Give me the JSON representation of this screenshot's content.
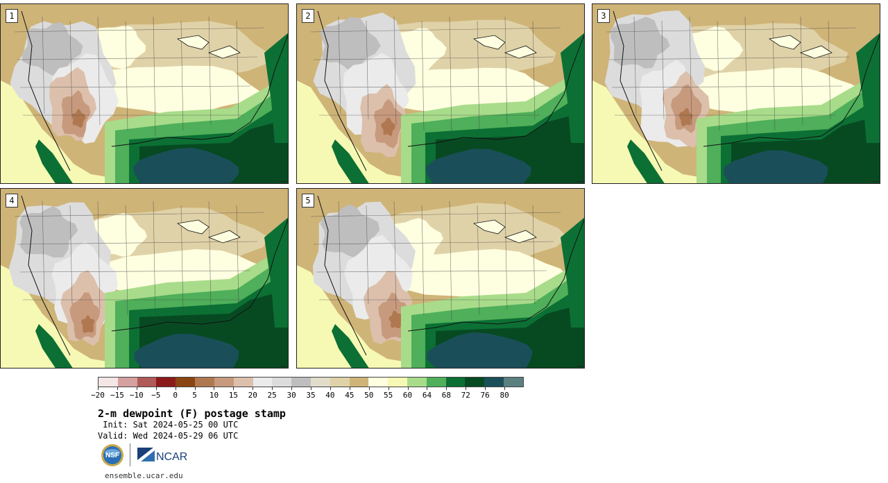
{
  "panels": [
    {
      "label": "1",
      "variant": 0
    },
    {
      "label": "2",
      "variant": 1
    },
    {
      "label": "3",
      "variant": 2
    },
    {
      "label": "4",
      "variant": 3
    },
    {
      "label": "5",
      "variant": 4
    }
  ],
  "colorbar": {
    "colors": [
      "#f5e6e6",
      "#d4a0a0",
      "#b05a5a",
      "#8c1a1a",
      "#8b4513",
      "#b07850",
      "#c79a7e",
      "#dcc0ac",
      "#ebebeb",
      "#dcdcdc",
      "#bebebe",
      "#e2dccb",
      "#e0d2a8",
      "#cfb478",
      "#fefee0",
      "#f6f9b4",
      "#a8dc8a",
      "#4faf5a",
      "#0c7034",
      "#074a22",
      "#1a4f5a",
      "#5a8080"
    ],
    "tick_labels": [
      "−20",
      "−15",
      "−10",
      "−5",
      "0",
      "5",
      "10",
      "15",
      "20",
      "25",
      "30",
      "35",
      "40",
      "45",
      "50",
      "55",
      "60",
      "64",
      "68",
      "72",
      "76",
      "80"
    ]
  },
  "title": "2-m dewpoint (F) postage stamp",
  "init_line": " Init: Sat 2024-05-25 00 UTC",
  "valid_line": "Valid: Wed 2024-05-29 06 UTC",
  "logos": {
    "nsf": "NSF",
    "ncar": "NCAR"
  },
  "footer_url": "ensemble.ucar.edu"
}
